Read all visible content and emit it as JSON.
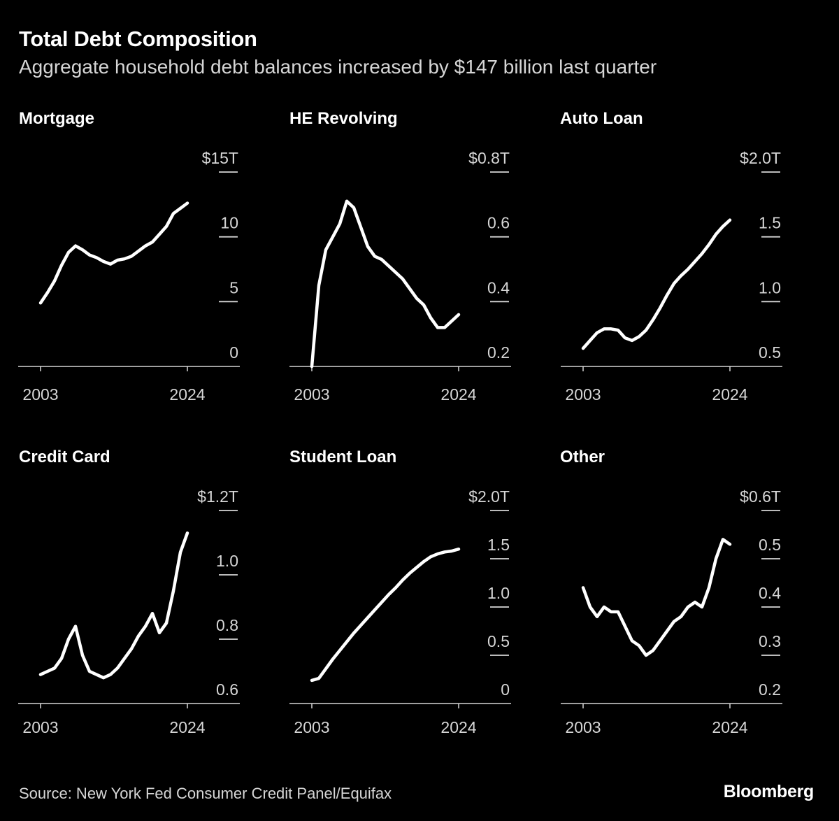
{
  "header": {
    "title": "Total Debt Composition",
    "subtitle": "Aggregate household debt balances increased by $147 billion last quarter"
  },
  "footer": {
    "source": "Source: New York Fed Consumer Credit Panel/Equifax",
    "brand": "Bloomberg"
  },
  "colors": {
    "background": "#000000",
    "line": "#ffffff",
    "muted": "#d6d6d6"
  },
  "chart_data": [
    {
      "type": "line",
      "title": "Mortgage",
      "unit": "T",
      "x_ticks": [
        "2003",
        "2024"
      ],
      "x_range": [
        2003,
        2024
      ],
      "y_ticks": [
        0,
        5,
        10,
        15
      ],
      "y_tick_labels": [
        "0",
        "5",
        "10",
        "$15T"
      ],
      "ylim": [
        0,
        15
      ],
      "series": [
        {
          "name": "Mortgage",
          "x": [
            2003,
            2004,
            2005,
            2006,
            2007,
            2008,
            2009,
            2010,
            2011,
            2012,
            2013,
            2014,
            2015,
            2016,
            2017,
            2018,
            2019,
            2020,
            2021,
            2022,
            2023,
            2024
          ],
          "values": [
            4.9,
            5.7,
            6.6,
            7.8,
            8.8,
            9.3,
            9.0,
            8.6,
            8.4,
            8.1,
            7.9,
            8.2,
            8.3,
            8.5,
            8.9,
            9.3,
            9.6,
            10.2,
            10.8,
            11.8,
            12.2,
            12.6
          ]
        }
      ]
    },
    {
      "type": "line",
      "title": "HE Revolving",
      "unit": "T",
      "x_ticks": [
        "2003",
        "2024"
      ],
      "x_range": [
        2003,
        2024
      ],
      "y_ticks": [
        0.2,
        0.4,
        0.6,
        0.8
      ],
      "y_tick_labels": [
        "0.2",
        "0.4",
        "0.6",
        "$0.8T"
      ],
      "ylim": [
        0.2,
        0.8
      ],
      "series": [
        {
          "name": "HE Revolving",
          "x": [
            2003,
            2004,
            2005,
            2006,
            2007,
            2008,
            2009,
            2010,
            2011,
            2012,
            2013,
            2014,
            2015,
            2016,
            2017,
            2018,
            2019,
            2020,
            2021,
            2022,
            2023,
            2024
          ],
          "values": [
            0.2,
            0.45,
            0.56,
            0.6,
            0.64,
            0.71,
            0.69,
            0.63,
            0.57,
            0.54,
            0.53,
            0.51,
            0.49,
            0.47,
            0.44,
            0.41,
            0.39,
            0.35,
            0.32,
            0.32,
            0.34,
            0.36
          ]
        }
      ]
    },
    {
      "type": "line",
      "title": "Auto Loan",
      "unit": "T",
      "x_ticks": [
        "2003",
        "2024"
      ],
      "x_range": [
        2003,
        2024
      ],
      "y_ticks": [
        0.5,
        1.0,
        1.5,
        2.0
      ],
      "y_tick_labels": [
        "0.5",
        "1.0",
        "1.5",
        "$2.0T"
      ],
      "ylim": [
        0.5,
        2.0
      ],
      "series": [
        {
          "name": "Auto Loan",
          "x": [
            2003,
            2004,
            2005,
            2006,
            2007,
            2008,
            2009,
            2010,
            2011,
            2012,
            2013,
            2014,
            2015,
            2016,
            2017,
            2018,
            2019,
            2020,
            2021,
            2022,
            2023,
            2024
          ],
          "values": [
            0.64,
            0.7,
            0.76,
            0.79,
            0.79,
            0.78,
            0.72,
            0.7,
            0.73,
            0.78,
            0.86,
            0.95,
            1.05,
            1.14,
            1.2,
            1.25,
            1.31,
            1.37,
            1.44,
            1.52,
            1.58,
            1.63
          ]
        }
      ]
    },
    {
      "type": "line",
      "title": "Credit Card",
      "unit": "T",
      "x_ticks": [
        "2003",
        "2024"
      ],
      "x_range": [
        2003,
        2024
      ],
      "y_ticks": [
        0.6,
        0.8,
        1.0,
        1.2
      ],
      "y_tick_labels": [
        "0.6",
        "0.8",
        "1.0",
        "$1.2T"
      ],
      "ylim": [
        0.6,
        1.2
      ],
      "series": [
        {
          "name": "Credit Card",
          "x": [
            2003,
            2004,
            2005,
            2006,
            2007,
            2008,
            2009,
            2010,
            2011,
            2012,
            2013,
            2014,
            2015,
            2016,
            2017,
            2018,
            2019,
            2020,
            2021,
            2022,
            2023,
            2024
          ],
          "values": [
            0.69,
            0.7,
            0.71,
            0.74,
            0.8,
            0.84,
            0.75,
            0.7,
            0.69,
            0.68,
            0.69,
            0.71,
            0.74,
            0.77,
            0.81,
            0.84,
            0.88,
            0.82,
            0.85,
            0.95,
            1.07,
            1.13
          ]
        }
      ]
    },
    {
      "type": "line",
      "title": "Student Loan",
      "unit": "T",
      "x_ticks": [
        "2003",
        "2024"
      ],
      "x_range": [
        2003,
        2024
      ],
      "y_ticks": [
        0,
        0.5,
        1.0,
        1.5,
        2.0
      ],
      "y_tick_labels": [
        "0",
        "0.5",
        "1.0",
        "1.5",
        "$2.0T"
      ],
      "ylim": [
        0,
        2.0
      ],
      "series": [
        {
          "name": "Student Loan",
          "x": [
            2003,
            2004,
            2005,
            2006,
            2007,
            2008,
            2009,
            2010,
            2011,
            2012,
            2013,
            2014,
            2015,
            2016,
            2017,
            2018,
            2019,
            2020,
            2021,
            2022,
            2023,
            2024
          ],
          "values": [
            0.24,
            0.26,
            0.36,
            0.46,
            0.55,
            0.64,
            0.73,
            0.81,
            0.89,
            0.97,
            1.05,
            1.13,
            1.2,
            1.28,
            1.35,
            1.41,
            1.47,
            1.52,
            1.55,
            1.57,
            1.58,
            1.6
          ]
        }
      ]
    },
    {
      "type": "line",
      "title": "Other",
      "unit": "T",
      "x_ticks": [
        "2003",
        "2024"
      ],
      "x_range": [
        2003,
        2024
      ],
      "y_ticks": [
        0.2,
        0.3,
        0.4,
        0.5,
        0.6
      ],
      "y_tick_labels": [
        "0.2",
        "0.3",
        "0.4",
        "0.5",
        "$0.6T"
      ],
      "ylim": [
        0.2,
        0.6
      ],
      "series": [
        {
          "name": "Other",
          "x": [
            2003,
            2004,
            2005,
            2006,
            2007,
            2008,
            2009,
            2010,
            2011,
            2012,
            2013,
            2014,
            2015,
            2016,
            2017,
            2018,
            2019,
            2020,
            2021,
            2022,
            2023,
            2024
          ],
          "values": [
            0.44,
            0.4,
            0.38,
            0.4,
            0.39,
            0.39,
            0.36,
            0.33,
            0.32,
            0.3,
            0.31,
            0.33,
            0.35,
            0.37,
            0.38,
            0.4,
            0.41,
            0.4,
            0.44,
            0.5,
            0.54,
            0.53
          ]
        }
      ]
    }
  ]
}
